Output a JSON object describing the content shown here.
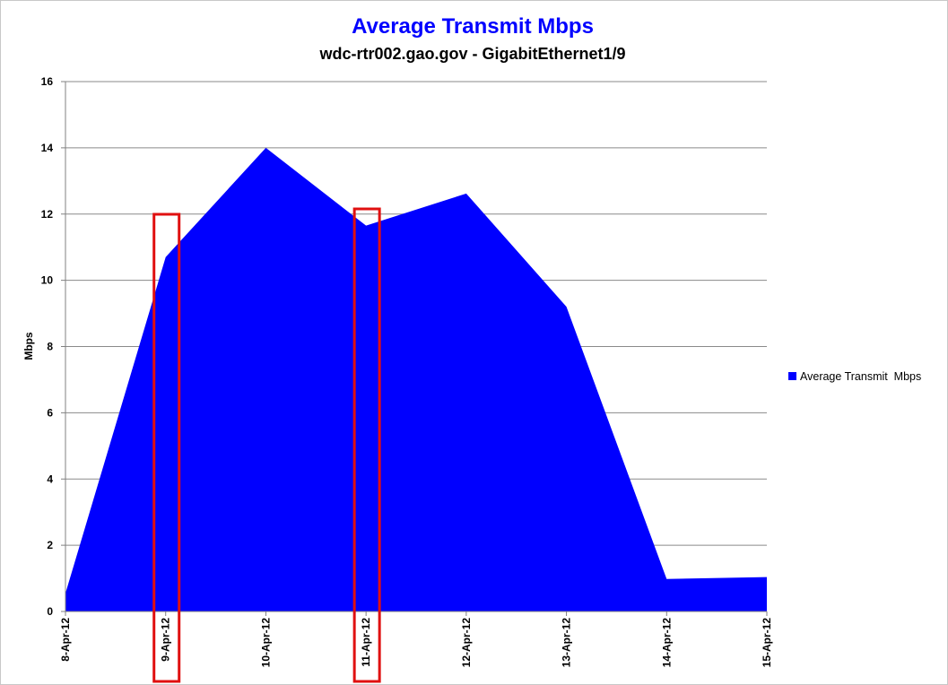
{
  "chart_data": {
    "type": "area",
    "title": "Average Transmit Mbps",
    "subtitle": "wdc-rtr002.gao.gov - GigabitEthernet1/9",
    "ylabel": "Mbps",
    "xlabel": "",
    "ylim": [
      0,
      16
    ],
    "yticks": [
      "0",
      "2",
      "4",
      "6",
      "8",
      "10",
      "12",
      "14",
      "16"
    ],
    "categories": [
      "8-Apr-12",
      "9-Apr-12",
      "10-Apr-12",
      "11-Apr-12",
      "12-Apr-12",
      "13-Apr-12",
      "14-Apr-12",
      "15-Apr-12"
    ],
    "grid": true,
    "legend_position": "right",
    "series": [
      {
        "name": "Average Transmit  Mbps",
        "color": "#0000ff",
        "values": [
          0.55,
          10.7,
          14.0,
          11.65,
          12.62,
          9.2,
          0.98,
          1.04
        ]
      }
    ],
    "annotations": [
      {
        "type": "highlight-box",
        "category": "9-Apr-12",
        "color": "#e01010"
      },
      {
        "type": "highlight-box",
        "category": "11-Apr-12",
        "color": "#e01010"
      }
    ]
  }
}
